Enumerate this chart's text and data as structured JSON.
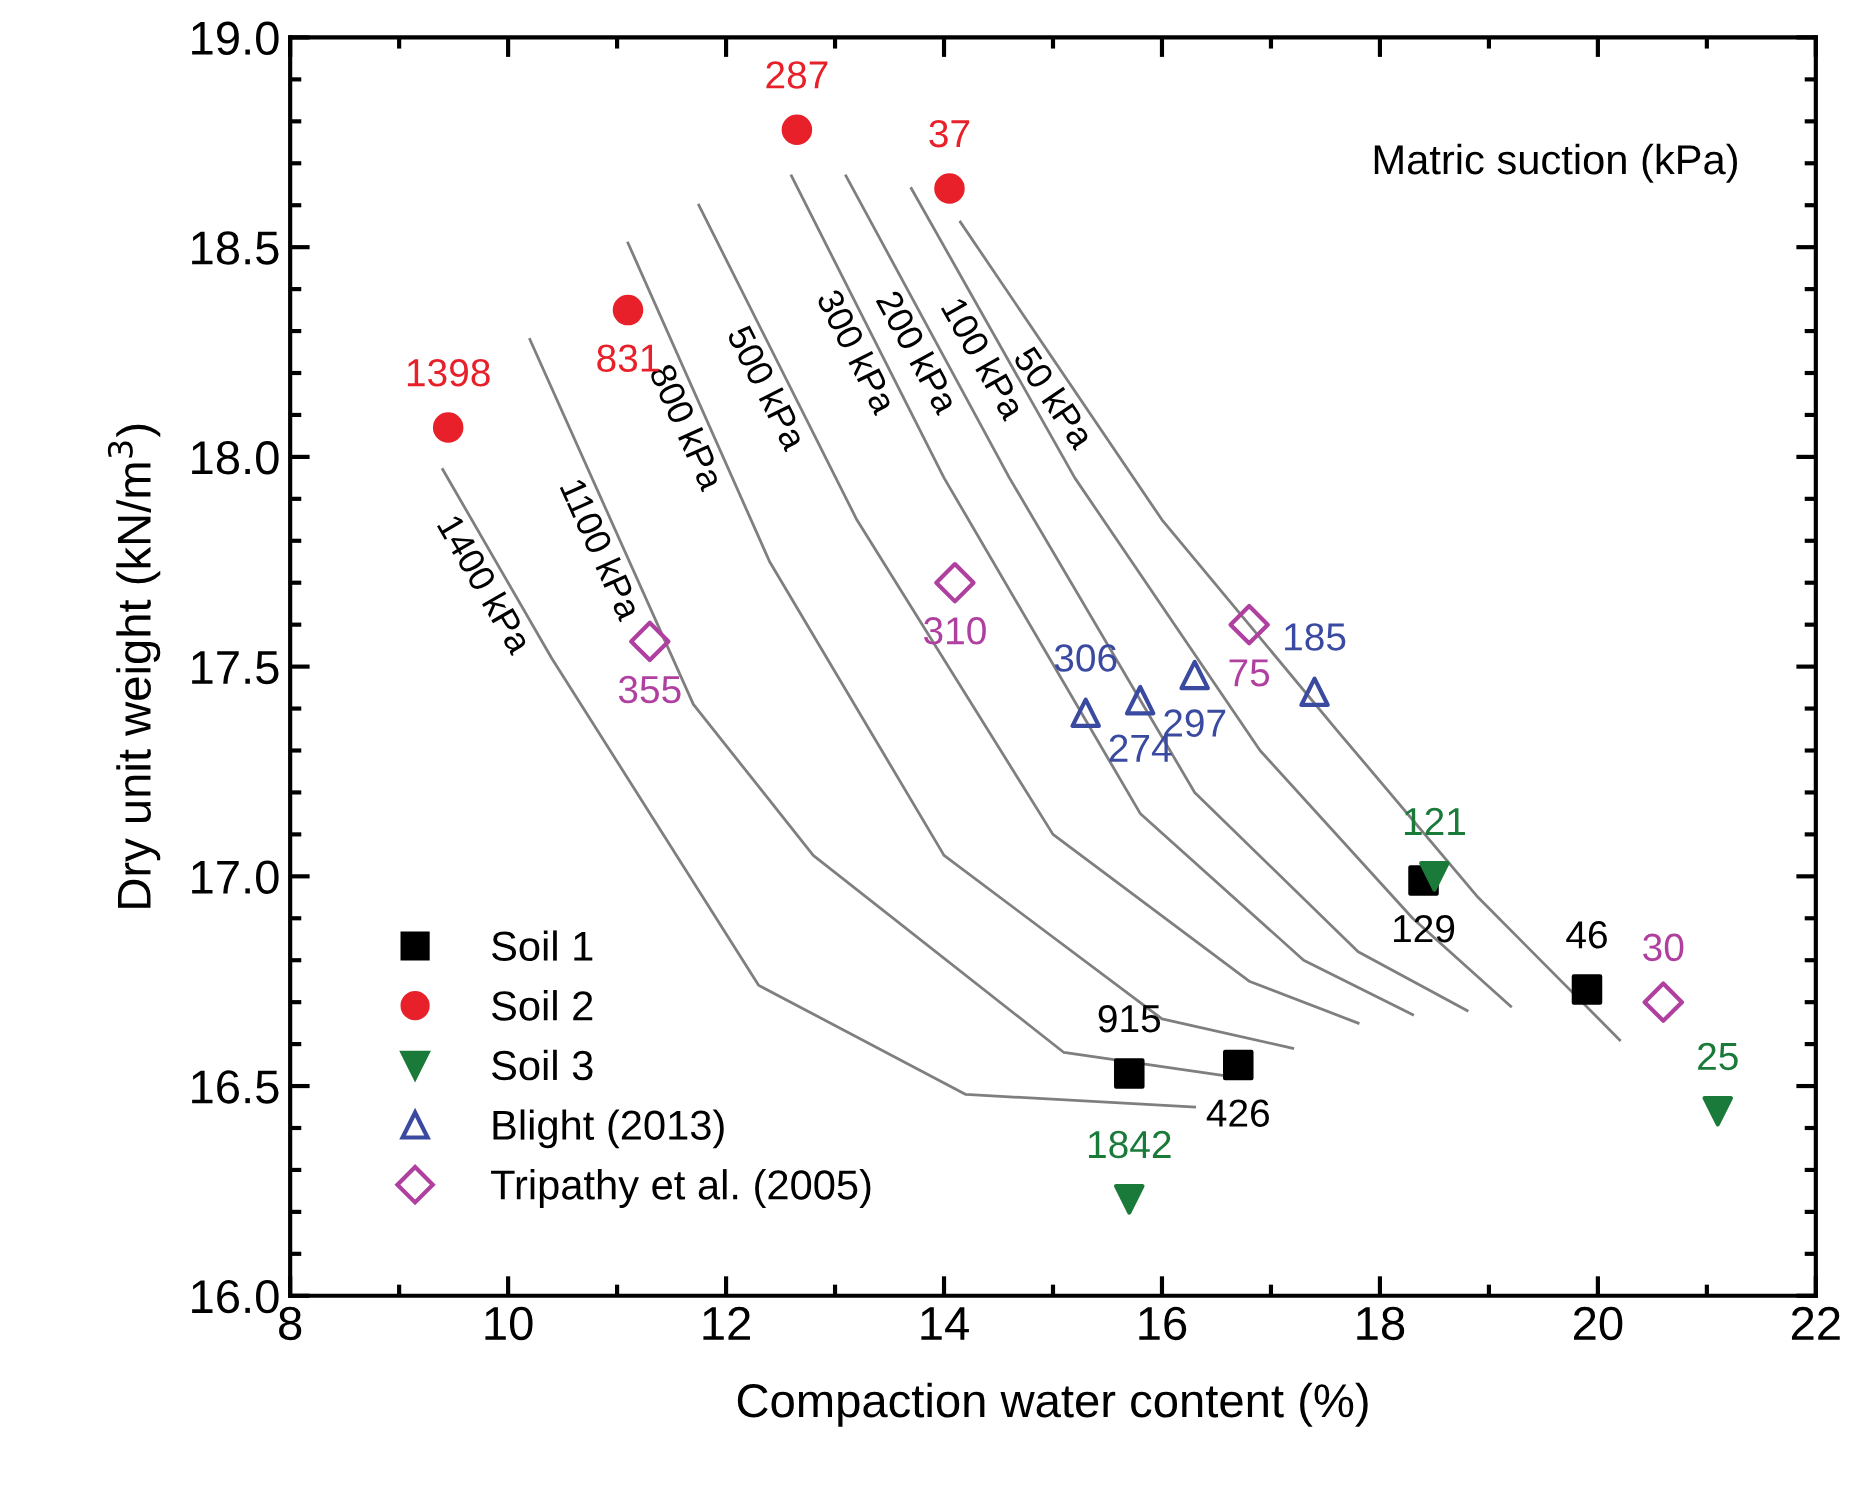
{
  "chart_data": {
    "type": "scatter",
    "xlabel": "Compaction water content (%)",
    "ylabel": "Dry unit weight (kN/m$^{3}$)",
    "xlim": [
      8,
      22
    ],
    "xticks": [
      8,
      10,
      12,
      14,
      16,
      18,
      20,
      22
    ],
    "ylim": [
      16.0,
      19.0
    ],
    "yticks": [
      {
        "value": 16.0,
        "label": "16.0"
      },
      {
        "value": 16.5,
        "label": "16.5"
      },
      {
        "value": 17.0,
        "label": "17.0"
      },
      {
        "value": 17.5,
        "label": "17.5"
      },
      {
        "value": 18.0,
        "label": "18.0"
      },
      {
        "value": 18.5,
        "label": "18.5"
      },
      {
        "value": 19.0,
        "label": "19.0"
      }
    ],
    "grid": false,
    "legend": "bottom left",
    "series": [
      {
        "name": "1400 kPa",
        "type": "line",
        "color": "#7f7f7f",
        "x": [
          9.4,
          10.4,
          12.3,
          14.2,
          16.3
        ],
        "values": [
          17.97,
          17.52,
          16.74,
          16.48,
          16.45
        ]
      },
      {
        "name": "1100 kPa",
        "type": "line",
        "color": "#7f7f7f",
        "x": [
          10.2,
          11.7,
          12.8,
          15.1,
          16.7
        ],
        "values": [
          18.28,
          17.41,
          17.05,
          16.58,
          16.52
        ]
      },
      {
        "name": "800 kPa",
        "type": "line",
        "color": "#7f7f7f",
        "x": [
          11.1,
          12.4,
          14.0,
          16.0,
          17.2
        ],
        "values": [
          18.51,
          17.75,
          17.05,
          16.66,
          16.59
        ]
      },
      {
        "name": "500 kPa",
        "type": "line",
        "color": "#7f7f7f",
        "x": [
          11.75,
          13.2,
          15.0,
          16.8,
          17.8
        ],
        "values": [
          18.6,
          17.85,
          17.1,
          16.75,
          16.65
        ]
      },
      {
        "name": "300 kPa",
        "type": "line",
        "color": "#7f7f7f",
        "x": [
          12.6,
          14.0,
          15.8,
          17.3,
          18.3
        ],
        "values": [
          18.67,
          17.95,
          17.15,
          16.8,
          16.67
        ]
      },
      {
        "name": "200 kPa",
        "type": "line",
        "color": "#7f7f7f",
        "x": [
          13.1,
          14.6,
          16.3,
          17.8,
          18.8
        ],
        "values": [
          18.67,
          17.95,
          17.2,
          16.82,
          16.68
        ]
      },
      {
        "name": "100 kPa",
        "type": "line",
        "color": "#7f7f7f",
        "x": [
          13.7,
          15.2,
          16.9,
          18.3,
          19.2
        ],
        "values": [
          18.64,
          17.95,
          17.3,
          16.9,
          16.69
        ]
      },
      {
        "name": "50 kPa",
        "type": "line",
        "color": "#7f7f7f",
        "x": [
          14.15,
          16.0,
          17.6,
          18.9,
          20.2
        ],
        "values": [
          18.56,
          17.85,
          17.35,
          16.95,
          16.61
        ]
      },
      {
        "name": "Soil 1",
        "marker": "square",
        "color": "#000000",
        "x": [
          15.7,
          16.7,
          18.4,
          19.9
        ],
        "values": [
          16.53,
          16.55,
          16.99,
          16.73
        ]
      },
      {
        "name": "Soil 2",
        "marker": "circle",
        "color": "#e8202a",
        "x": [
          9.45,
          11.1,
          12.65,
          14.05
        ],
        "values": [
          18.07,
          18.35,
          18.78,
          18.64
        ]
      },
      {
        "name": "Soil 3",
        "marker": "triangle-down",
        "color": "#1a7a3a",
        "x": [
          15.7,
          18.5,
          21.1
        ],
        "values": [
          16.23,
          17.0,
          16.44
        ]
      },
      {
        "name": "Blight (2013)",
        "marker": "triangle",
        "color": "#3a4aa0",
        "x": [
          15.3,
          15.8,
          16.3,
          17.4
        ],
        "values": [
          17.39,
          17.42,
          17.48,
          17.44
        ]
      },
      {
        "name": "Tripathy et al. (2005)",
        "marker": "diamond",
        "color": "#b040a0",
        "x": [
          11.3,
          14.1,
          16.8,
          20.6
        ],
        "values": [
          17.56,
          17.7,
          17.6,
          16.7
        ]
      }
    ],
    "annotations": [
      "Matric suction (kPa)",
      {
        "text": "915",
        "x": 15.7,
        "y": 16.53
      },
      {
        "text": "426",
        "x": 16.7,
        "y": 16.55
      },
      {
        "text": "129",
        "x": 18.4,
        "y": 16.99
      },
      {
        "text": "46",
        "x": 19.9,
        "y": 16.73
      },
      {
        "text": "1398",
        "x": 9.45,
        "y": 18.07
      },
      {
        "text": "831",
        "x": 11.1,
        "y": 18.35
      },
      {
        "text": "287",
        "x": 12.65,
        "y": 18.78
      },
      {
        "text": "37",
        "x": 14.05,
        "y": 18.64
      },
      {
        "text": "1842",
        "x": 15.7,
        "y": 16.23
      },
      {
        "text": "121",
        "x": 18.5,
        "y": 17.0
      },
      {
        "text": "25",
        "x": 21.1,
        "y": 16.44
      },
      {
        "text": "306",
        "x": 15.3,
        "y": 17.39
      },
      {
        "text": "274",
        "x": 15.8,
        "y": 17.42
      },
      {
        "text": "297",
        "x": 16.3,
        "y": 17.48
      },
      {
        "text": "185",
        "x": 17.4,
        "y": 17.44
      },
      {
        "text": "355",
        "x": 11.3,
        "y": 17.56
      },
      {
        "text": "310",
        "x": 14.1,
        "y": 17.7
      },
      {
        "text": "75",
        "x": 16.8,
        "y": 17.6
      },
      {
        "text": "30",
        "x": 20.6,
        "y": 16.7
      }
    ]
  }
}
